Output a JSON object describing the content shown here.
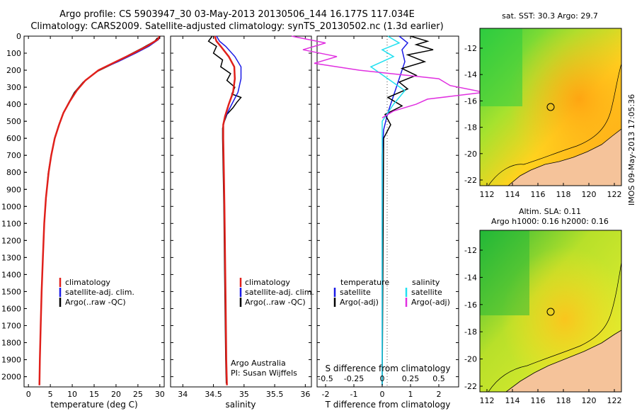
{
  "header": {
    "line1": "Argo profile: CS 5903947_30 03-May-2013 20130506_144 16.177S 117.034E",
    "line2": "Climatology: CARS2009. Satellite-adjusted climatology: synTS_20130502.nc (1.3d earlier)"
  },
  "colors": {
    "climatology": "#e0201b",
    "satellite": "#1a1ae6",
    "argo": "#000000",
    "salinity_sat": "#22e0f0",
    "salinity_argo": "#e030e0",
    "land": "#f5c39a"
  },
  "chart_data": [
    {
      "type": "line",
      "xlabel": "temperature (deg C)",
      "xticks": [
        0,
        5,
        10,
        15,
        20,
        25,
        30
      ],
      "xlim": [
        -1,
        31
      ],
      "ylim": [
        0,
        2060
      ],
      "yticks": [
        0,
        100,
        200,
        300,
        400,
        500,
        600,
        700,
        800,
        900,
        1000,
        1100,
        1200,
        1300,
        1400,
        1500,
        1600,
        1700,
        1800,
        1900,
        2000
      ],
      "legend": [
        "climatology",
        "satellite-adj. clim.",
        "Argo(..raw -QC)"
      ],
      "series": [
        {
          "name": "climatology",
          "x": [
            30,
            29.5,
            27,
            24,
            20,
            16,
            13,
            11,
            9.5,
            8,
            7,
            6,
            5.2,
            4.6,
            4,
            3.6,
            3.3,
            3,
            2.8,
            2.6,
            2.5
          ],
          "y": [
            0,
            20,
            60,
            100,
            150,
            200,
            260,
            320,
            380,
            450,
            520,
            600,
            700,
            800,
            950,
            1100,
            1300,
            1500,
            1700,
            1900,
            2050
          ]
        },
        {
          "name": "satellite-adj. clim.",
          "x": [
            30,
            29.7,
            27.5,
            24.5,
            20.5,
            16,
            13,
            11,
            9.5,
            8,
            7,
            6,
            5.2,
            4.6,
            4,
            3.6,
            3.3,
            3,
            2.8,
            2.6,
            2.5
          ],
          "y": [
            0,
            20,
            60,
            100,
            150,
            200,
            260,
            320,
            380,
            450,
            520,
            600,
            700,
            800,
            950,
            1100,
            1300,
            1500,
            1700,
            1900,
            2050
          ]
        },
        {
          "name": "Argo(..raw -QC)",
          "x": [
            29.5,
            28.8,
            26,
            23,
            19.5,
            15.5,
            12.5,
            10.5,
            9.2,
            7.8,
            6.8,
            5.9,
            5.1,
            4.5,
            4,
            3.6,
            3.3,
            3,
            2.8,
            2.6,
            2.5
          ],
          "y": [
            10,
            30,
            70,
            110,
            160,
            210,
            270,
            330,
            390,
            460,
            530,
            610,
            710,
            810,
            960,
            1110,
            1310,
            1510,
            1710,
            1910,
            2040
          ]
        }
      ]
    },
    {
      "type": "line",
      "xlabel": "salinity",
      "xticks": [
        34,
        34.5,
        35,
        35.5,
        36
      ],
      "xlim": [
        33.8,
        36.1
      ],
      "legend": [
        "climatology",
        "satellite-adj. clim.",
        "Argo(..raw -QC)"
      ],
      "annotation": [
        "Argo Australia",
        "PI: Susan Wijffels"
      ],
      "series": [
        {
          "name": "climatology",
          "x": [
            34.52,
            34.55,
            34.62,
            34.75,
            34.84,
            34.85,
            34.82,
            34.75,
            34.69,
            34.66,
            34.66,
            34.67,
            34.68,
            34.69,
            34.7,
            34.71,
            34.72
          ],
          "y": [
            0,
            30,
            60,
            120,
            180,
            250,
            330,
            400,
            470,
            520,
            600,
            800,
            1000,
            1300,
            1600,
            1900,
            2050
          ]
        },
        {
          "name": "satellite-adj. clim.",
          "x": [
            34.55,
            34.6,
            34.7,
            34.85,
            34.95,
            34.95,
            34.9,
            34.8,
            34.7,
            34.66,
            34.66,
            34.67,
            34.68,
            34.69,
            34.7,
            34.71,
            34.72
          ],
          "y": [
            0,
            30,
            60,
            120,
            180,
            250,
            330,
            400,
            470,
            520,
            600,
            800,
            1000,
            1300,
            1600,
            1900,
            2050
          ]
        },
        {
          "name": "Argo(..raw -QC)",
          "x": [
            34.48,
            34.42,
            34.55,
            34.5,
            34.65,
            34.62,
            34.78,
            34.72,
            34.85,
            34.8,
            34.95,
            34.88,
            34.82,
            34.72,
            34.68,
            34.65,
            34.65,
            34.66,
            34.67,
            34.68,
            34.69,
            34.7,
            34.71
          ],
          "y": [
            0,
            30,
            60,
            100,
            140,
            180,
            220,
            260,
            300,
            340,
            360,
            390,
            420,
            460,
            500,
            540,
            600,
            800,
            1000,
            1300,
            1600,
            1900,
            2040
          ]
        }
      ]
    },
    {
      "type": "line",
      "xlabel": "T difference from climatology",
      "xlabel_top": "S difference from climatology",
      "xticks": [
        -2,
        -1,
        0,
        1,
        2
      ],
      "xticks_top": [
        "-0.5",
        "-0.25",
        "0",
        "0.25",
        "0.5"
      ],
      "xlim": [
        -2.3,
        2.7
      ],
      "legend_headers": [
        "temperature",
        "salinity"
      ],
      "legend_temperature": [
        "satellite",
        "Argo(-adj)"
      ],
      "legend_salinity": [
        "satellite",
        "Argo(-adj)"
      ],
      "series": [
        {
          "name": "temperature satellite",
          "x": [
            0.6,
            0.9,
            0.7,
            0.8,
            0.6,
            0.4,
            0.2,
            0.05,
            0,
            0,
            0
          ],
          "y": [
            0,
            40,
            80,
            150,
            250,
            350,
            450,
            550,
            700,
            1200,
            2050
          ]
        },
        {
          "name": "temperature Argo(-adj)",
          "x": [
            1.0,
            1.6,
            1.2,
            1.8,
            0.9,
            1.5,
            0.7,
            1.2,
            0.6,
            0.9,
            0.2,
            0.7,
            0.1,
            0.3,
            0.05,
            0
          ],
          "y": [
            0,
            30,
            50,
            80,
            110,
            150,
            190,
            230,
            270,
            310,
            360,
            410,
            460,
            520,
            600,
            2050
          ]
        },
        {
          "name": "salinity satellite",
          "x": [
            0.05,
            0.15,
            0.0,
            0.1,
            -0.1,
            0.05,
            0.2,
            0.1,
            0.0,
            0,
            0
          ],
          "y": [
            0,
            40,
            80,
            120,
            180,
            250,
            320,
            400,
            500,
            700,
            2050
          ]
        },
        {
          "name": "salinity Argo(-adj)",
          "x": [
            -0.8,
            -0.5,
            -0.7,
            -0.4,
            -0.6,
            -0.2,
            0.5,
            0.6,
            0.9,
            0.4,
            0.3,
            0.1,
            0.0
          ],
          "y": [
            0,
            40,
            80,
            120,
            160,
            200,
            250,
            290,
            330,
            370,
            400,
            440,
            480
          ]
        }
      ]
    }
  ],
  "maps": {
    "sst": {
      "title": "sat. SST: 30.3 Argo: 29.7",
      "xticks": [
        "112",
        "114",
        "116",
        "118",
        "120",
        "122"
      ],
      "yticks": [
        "-12",
        "-14",
        "-16",
        "-18",
        "-20",
        "-22"
      ]
    },
    "sla": {
      "title1": "Altim. SLA: 0.11",
      "title2": "Argo h1000: 0.16 h2000: 0.16",
      "xticks": [
        "112",
        "114",
        "116",
        "118",
        "120",
        "122"
      ],
      "yticks": [
        "-12",
        "-14",
        "-16",
        "-18",
        "-20",
        "-22"
      ]
    }
  },
  "stamp": "IMOS 09-May-2013 17:05:36"
}
